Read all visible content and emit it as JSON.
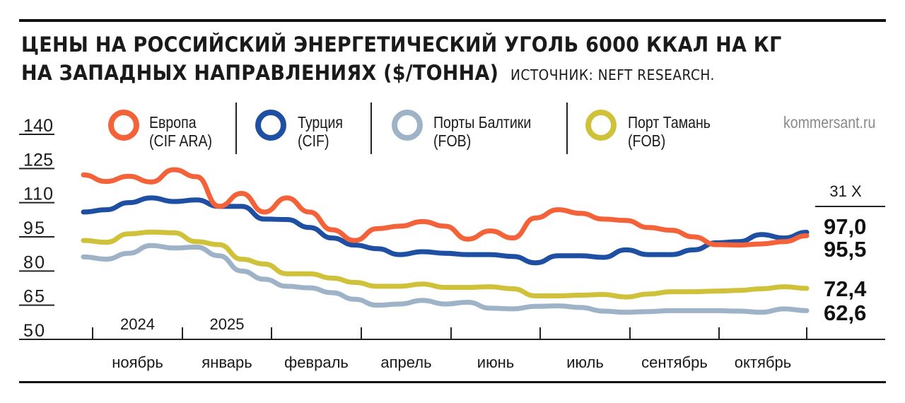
{
  "header": {
    "title_line1": "ЦЕНЫ НА РОССИЙСКИЙ ЭНЕРГЕТИЧЕСКИЙ УГОЛЬ 6000 ККАЛ НА КГ",
    "title_line2": "НА ЗАПАДНЫХ НАПРАВЛЕНИЯХ ($/ТОННА)",
    "source": "ИСТОЧНИК: NEFT RESEARCH.",
    "brand": "kommersant.ru"
  },
  "legend": [
    {
      "line1": "Европа",
      "line2": "(CIF ARA)"
    },
    {
      "line1": "Турция",
      "line2": "(CIF)"
    },
    {
      "line1": "Порты Балтики",
      "line2": "(FOB)"
    },
    {
      "line1": "Порт Тамань",
      "line2": "(FOB)"
    }
  ],
  "chart_data": {
    "type": "line",
    "title": "ЦЕНЫ НА РОССИЙСКИЙ ЭНЕРГЕТИЧЕСКИЙ УГОЛЬ 6000 ККАЛ НА КГ НА ЗАПАДНЫХ НАПРАВЛЕНИЯХ ($/ТОННА)",
    "ylim": [
      50,
      140
    ],
    "yticks": [
      "140",
      "125",
      "110",
      "95",
      "80",
      "65",
      "50"
    ],
    "ytick_values": [
      140,
      125,
      110,
      95,
      80,
      65,
      50
    ],
    "year_labels": [
      "2024",
      "2025"
    ],
    "month_labels": [
      "ноябрь",
      "январь",
      "февраль",
      "апрель",
      "июнь",
      "июль",
      "сентябрь",
      "октябрь"
    ],
    "end_date_label": "31 X",
    "grid": false,
    "legend_position": "top",
    "series": [
      {
        "name": "Европа (CIF ARA)",
        "color": "#f4623a",
        "end_label": "95,5",
        "values": [
          122.2,
          119.3,
          121.6,
          119.1,
          124.5,
          121.4,
          108.4,
          114.1,
          105.9,
          112.1,
          105.9,
          98.1,
          93.4,
          98.6,
          99.7,
          101.7,
          99.7,
          94.0,
          97.6,
          94.5,
          103.3,
          106.9,
          105.3,
          102.8,
          102.2,
          99.1,
          97.9,
          95.0,
          91.6,
          91.4,
          91.9,
          92.9,
          95.5
        ]
      },
      {
        "name": "Турция (CIF)",
        "color": "#1f4fa3",
        "end_label": "97,0",
        "values": [
          105.9,
          106.9,
          110.0,
          112.1,
          110.5,
          111.2,
          108.4,
          108.4,
          102.8,
          102.6,
          99.1,
          94.5,
          91.4,
          89.8,
          87.2,
          88.5,
          87.8,
          87.2,
          87.2,
          86.4,
          83.6,
          86.7,
          86.7,
          86.0,
          89.3,
          87.2,
          87.2,
          89.3,
          92.4,
          92.9,
          96.0,
          94.5,
          97.0
        ]
      },
      {
        "name": "Порты Балтики (FOB)",
        "color": "#9fb3c8",
        "end_label": "62,6",
        "values": [
          86.2,
          85.2,
          87.8,
          91.2,
          90.1,
          90.5,
          86.7,
          80.0,
          76.4,
          73.3,
          72.6,
          70.5,
          67.6,
          65.0,
          65.5,
          67.1,
          65.5,
          66.3,
          63.7,
          63.4,
          64.5,
          64.7,
          64.0,
          62.4,
          61.9,
          62.2,
          62.6,
          62.6,
          62.6,
          62.4,
          61.9,
          63.4,
          62.6
        ]
      },
      {
        "name": "Порт Тамань (FOB)",
        "color": "#cfc23a",
        "end_label": "72,4",
        "values": [
          93.4,
          92.6,
          96.3,
          97.1,
          96.8,
          92.9,
          91.6,
          85.2,
          83.1,
          78.8,
          78.8,
          76.9,
          75.0,
          73.3,
          73.3,
          74.3,
          72.8,
          72.8,
          73.1,
          72.2,
          69.1,
          69.1,
          69.4,
          69.7,
          68.6,
          69.9,
          70.9,
          70.9,
          71.2,
          71.5,
          72.2,
          73.1,
          72.4
        ]
      }
    ]
  }
}
